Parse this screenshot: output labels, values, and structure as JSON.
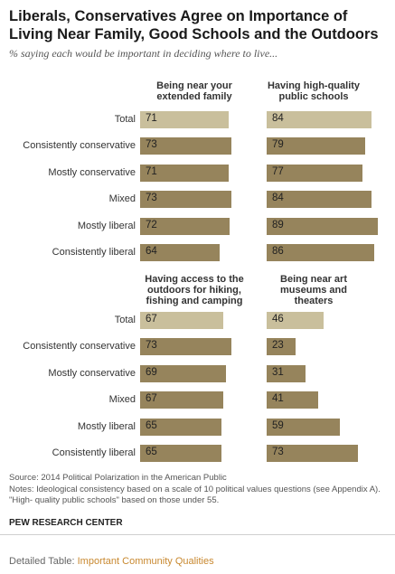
{
  "title": "Liberals, Conservatives Agree on Importance of Living Near Family, Good Schools and the Outdoors",
  "subtitle": "% saying each would be important in deciding where to live...",
  "colors": {
    "total": "#c9bf9c",
    "group": "#96845c"
  },
  "chart_data": {
    "type": "bar",
    "categories": [
      "Total",
      "Consistently conservative",
      "Mostly conservative",
      "Mixed",
      "Mostly liberal",
      "Consistently liberal"
    ],
    "panels": [
      {
        "title": "Being near your extended family",
        "values": [
          71,
          73,
          71,
          73,
          72,
          64
        ]
      },
      {
        "title": "Having high-quality public schools",
        "values": [
          84,
          79,
          77,
          84,
          89,
          86
        ]
      },
      {
        "title": "Having access to the outdoors for hiking, fishing and camping",
        "values": [
          67,
          73,
          69,
          67,
          65,
          65
        ]
      },
      {
        "title": "Being near art museums and theaters",
        "values": [
          46,
          23,
          31,
          41,
          59,
          73
        ]
      }
    ]
  },
  "footer": {
    "source": "Source: 2014 Political Polarization in the American Public",
    "notes": "Notes: Ideological consistency based on a scale of 10 political values questions (see Appendix A). \"High- quality public schools\" based on those under 55.",
    "org": "PEW RESEARCH CENTER"
  },
  "detail": {
    "prefix": "Detailed Table: ",
    "link": "Important Community Qualities"
  }
}
